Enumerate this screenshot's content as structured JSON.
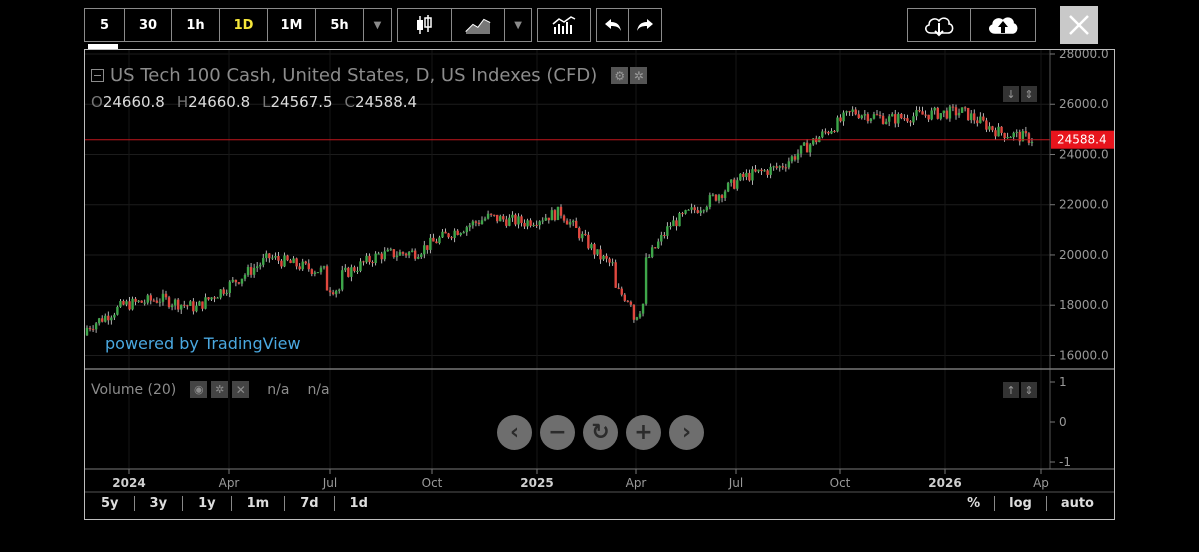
{
  "toolbar": {
    "intervals": [
      {
        "label": "5",
        "selected": false
      },
      {
        "label": "30",
        "selected": false
      },
      {
        "label": "1h",
        "selected": false
      },
      {
        "label": "1D",
        "selected": true
      },
      {
        "label": "1M",
        "selected": false
      },
      {
        "label": "5h",
        "selected": false
      }
    ],
    "dropdown_icon": "caret-down",
    "chart_style_icons": [
      "candlestick-icon",
      "area-chart-icon"
    ],
    "indicators_icon": "indicators-icon",
    "undo_icon": "undo-icon",
    "redo_icon": "redo-icon",
    "load_icon": "cloud-download-icon",
    "save_icon": "cloud-upload-icon",
    "close_icon": "close-icon"
  },
  "legend": {
    "symbol_title": "US Tech 100 Cash, United States, D, US Indexes (CFD)",
    "ohlc": [
      {
        "key": "O",
        "value": "24660.8"
      },
      {
        "key": "H",
        "value": "24660.8"
      },
      {
        "key": "L",
        "value": "24567.5"
      },
      {
        "key": "C",
        "value": "24588.4"
      }
    ],
    "watermark": "powered by TradingView"
  },
  "price_axis": {
    "ticks": [
      "28000.0",
      "26000.0",
      "24000.0",
      "22000.0",
      "20000.0",
      "18000.0",
      "16000.0"
    ],
    "last_price": "24588.4",
    "last_price_color": "#e8141c"
  },
  "volume_pane": {
    "title": "Volume (20)",
    "values": [
      "n/a",
      "n/a"
    ],
    "axis_ticks": [
      "1",
      "0",
      "-1"
    ]
  },
  "time_axis": {
    "labels": [
      "2024",
      "Apr",
      "Jul",
      "Oct",
      "2025",
      "Apr",
      "Jul",
      "Oct",
      "2026",
      "Ap"
    ]
  },
  "ranges": [
    "5y",
    "3y",
    "1y",
    "1m",
    "7d",
    "1d"
  ],
  "scale_options": [
    "%",
    "log",
    "auto"
  ],
  "nav_controls": [
    "chevron-left-icon",
    "zoom-out-icon",
    "reset-icon",
    "zoom-in-icon",
    "chevron-right-icon"
  ],
  "colors": {
    "up": "#3ea64a",
    "down": "#e0483f",
    "accent_selected": "#f5e63a",
    "link": "#4aa8e0"
  },
  "chart_data": {
    "type": "candlestick",
    "title": "US Tech 100 Cash, United States, D, US Indexes (CFD)",
    "x": [
      "2024-01",
      "2024-02",
      "2024-03",
      "2024-04",
      "2024-05",
      "2024-06",
      "2024-07",
      "2024-08",
      "2024-09",
      "2024-10",
      "2024-11",
      "2024-12",
      "2025-01",
      "2025-02",
      "2025-03",
      "2025-04",
      "2025-05",
      "2025-06",
      "2025-07",
      "2025-08",
      "2025-09",
      "2025-10",
      "2025-11",
      "2025-12",
      "2026-01",
      "2026-02",
      "2026-03"
    ],
    "close": [
      17100,
      18000,
      18250,
      17900,
      18900,
      19900,
      19500,
      19200,
      20000,
      20100,
      20900,
      21500,
      21300,
      21700,
      20000,
      19000,
      21200,
      22100,
      23100,
      23500,
      24600,
      25700,
      25400,
      25600,
      25700,
      24900,
      24588.4
    ],
    "ylim": [
      15500,
      28000
    ],
    "y_ticks": [
      16000,
      18000,
      20000,
      22000,
      24000,
      26000,
      28000
    ],
    "last_close": 24588.4
  }
}
